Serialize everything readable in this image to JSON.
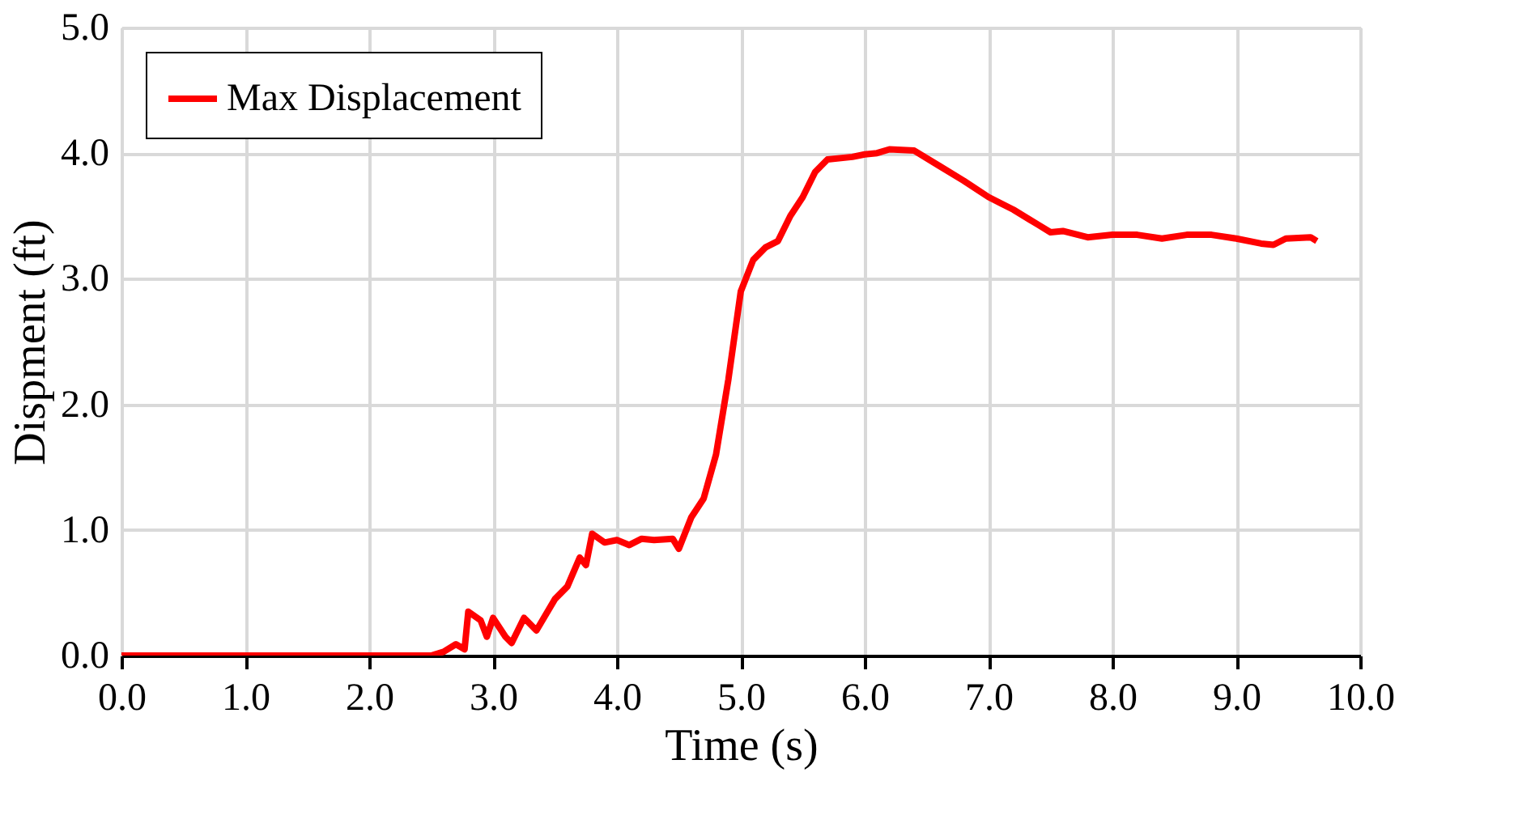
{
  "chart_data": {
    "type": "line",
    "xlabel": "Time (s)",
    "ylabel": "Dispment (ft)",
    "xlim": [
      0,
      10
    ],
    "ylim": [
      0,
      5
    ],
    "xticks": [
      {
        "value": 0,
        "label": "0.0"
      },
      {
        "value": 1,
        "label": "1.0"
      },
      {
        "value": 2,
        "label": "2.0"
      },
      {
        "value": 3,
        "label": "3.0"
      },
      {
        "value": 4,
        "label": "4.0"
      },
      {
        "value": 5,
        "label": "5.0"
      },
      {
        "value": 6,
        "label": "6.0"
      },
      {
        "value": 7,
        "label": "7.0"
      },
      {
        "value": 8,
        "label": "8.0"
      },
      {
        "value": 9,
        "label": "9.0"
      },
      {
        "value": 10,
        "label": "10.0"
      }
    ],
    "yticks": [
      {
        "value": 0,
        "label": "0.0"
      },
      {
        "value": 1,
        "label": "1.0"
      },
      {
        "value": 2,
        "label": "2.0"
      },
      {
        "value": 3,
        "label": "3.0"
      },
      {
        "value": 4,
        "label": "4.0"
      },
      {
        "value": 5,
        "label": "5.0"
      }
    ],
    "grid": true,
    "legend": "top left",
    "marker": "none",
    "line_style": "solid",
    "series": [
      {
        "name": "Max Displacement",
        "color": "#ff0000",
        "x": [
          0,
          1,
          2,
          2.5,
          2.6,
          2.7,
          2.77,
          2.8,
          2.9,
          2.95,
          3.0,
          3.1,
          3.15,
          3.25,
          3.35,
          3.5,
          3.6,
          3.7,
          3.75,
          3.8,
          3.9,
          4.0,
          4.1,
          4.2,
          4.3,
          4.45,
          4.5,
          4.6,
          4.7,
          4.8,
          4.9,
          5.0,
          5.1,
          5.2,
          5.3,
          5.4,
          5.5,
          5.6,
          5.7,
          5.9,
          6.0,
          6.1,
          6.2,
          6.4,
          6.6,
          6.8,
          7.0,
          7.2,
          7.4,
          7.5,
          7.6,
          7.8,
          8.0,
          8.2,
          8.4,
          8.6,
          8.8,
          9.0,
          9.2,
          9.3,
          9.4,
          9.6,
          9.65
        ],
        "values": [
          0,
          0,
          0,
          0,
          0.03,
          0.09,
          0.05,
          0.35,
          0.28,
          0.15,
          0.3,
          0.15,
          0.1,
          0.3,
          0.2,
          0.45,
          0.55,
          0.78,
          0.72,
          0.97,
          0.9,
          0.92,
          0.88,
          0.93,
          0.92,
          0.93,
          0.85,
          1.1,
          1.25,
          1.6,
          2.2,
          2.9,
          3.15,
          3.25,
          3.3,
          3.5,
          3.65,
          3.85,
          3.95,
          3.97,
          3.99,
          4.0,
          4.03,
          4.02,
          3.9,
          3.78,
          3.65,
          3.55,
          3.43,
          3.37,
          3.38,
          3.33,
          3.35,
          3.35,
          3.32,
          3.35,
          3.35,
          3.32,
          3.28,
          3.27,
          3.32,
          3.33,
          3.3
        ]
      }
    ]
  }
}
